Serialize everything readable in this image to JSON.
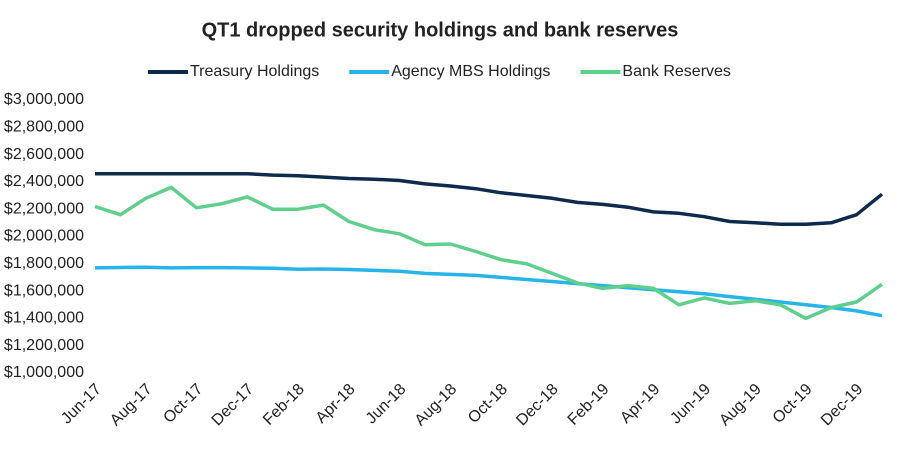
{
  "chart_data": {
    "type": "line",
    "title": "QT1 dropped security holdings and bank reserves",
    "categories": [
      "Jun-17",
      null,
      "Aug-17",
      null,
      "Oct-17",
      null,
      "Dec-17",
      null,
      "Feb-18",
      null,
      "Apr-18",
      null,
      "Jun-18",
      null,
      "Aug-18",
      null,
      "Oct-18",
      null,
      "Dec-18",
      null,
      "Feb-19",
      null,
      "Apr-19",
      null,
      "Jun-19",
      null,
      "Aug-19",
      null,
      "Oct-19",
      null,
      "Dec-19",
      null
    ],
    "series": [
      {
        "name": "Treasury Holdings",
        "color": "#0e2a4d",
        "values": [
          2460000,
          2460000,
          2460000,
          2460000,
          2460000,
          2460000,
          2460000,
          2450000,
          2445000,
          2435000,
          2425000,
          2420000,
          2410000,
          2385000,
          2370000,
          2350000,
          2320000,
          2300000,
          2280000,
          2250000,
          2235000,
          2215000,
          2180000,
          2170000,
          2145000,
          2110000,
          2100000,
          2090000,
          2090000,
          2100000,
          2160000,
          2310000
        ]
      },
      {
        "name": "Agency MBS Holdings",
        "color": "#27b4e8",
        "values": [
          1770000,
          1773000,
          1775000,
          1770000,
          1772000,
          1772000,
          1770000,
          1768000,
          1760000,
          1762000,
          1758000,
          1752000,
          1745000,
          1730000,
          1722000,
          1715000,
          1700000,
          1685000,
          1670000,
          1655000,
          1640000,
          1625000,
          1610000,
          1595000,
          1580000,
          1560000,
          1540000,
          1520000,
          1500000,
          1480000,
          1455000,
          1420000
        ]
      },
      {
        "name": "Bank Reserves",
        "color": "#5fcf8c",
        "values": [
          2220000,
          2160000,
          2280000,
          2360000,
          2210000,
          2240000,
          2290000,
          2200000,
          2200000,
          2230000,
          2110000,
          2050000,
          2020000,
          1940000,
          1945000,
          1890000,
          1830000,
          1800000,
          1730000,
          1660000,
          1620000,
          1640000,
          1620000,
          1500000,
          1550000,
          1510000,
          1530000,
          1500000,
          1400000,
          1480000,
          1520000,
          1650000
        ]
      }
    ],
    "ylim": [
      1000000,
      3000000
    ],
    "yticks": [
      {
        "value": 1000000,
        "label": "$1,000,000"
      },
      {
        "value": 1200000,
        "label": "$1,200,000"
      },
      {
        "value": 1400000,
        "label": "$1,400,000"
      },
      {
        "value": 1600000,
        "label": "$1,600,000"
      },
      {
        "value": 1800000,
        "label": "$1,800,000"
      },
      {
        "value": 2000000,
        "label": "$2,000,000"
      },
      {
        "value": 2200000,
        "label": "$2,200,000"
      },
      {
        "value": 2400000,
        "label": "$2,400,000"
      },
      {
        "value": 2600000,
        "label": "$2,600,000"
      },
      {
        "value": 2800000,
        "label": "$2,800,000"
      },
      {
        "value": 3000000,
        "label": "$3,000,000"
      }
    ],
    "legend": "top"
  }
}
